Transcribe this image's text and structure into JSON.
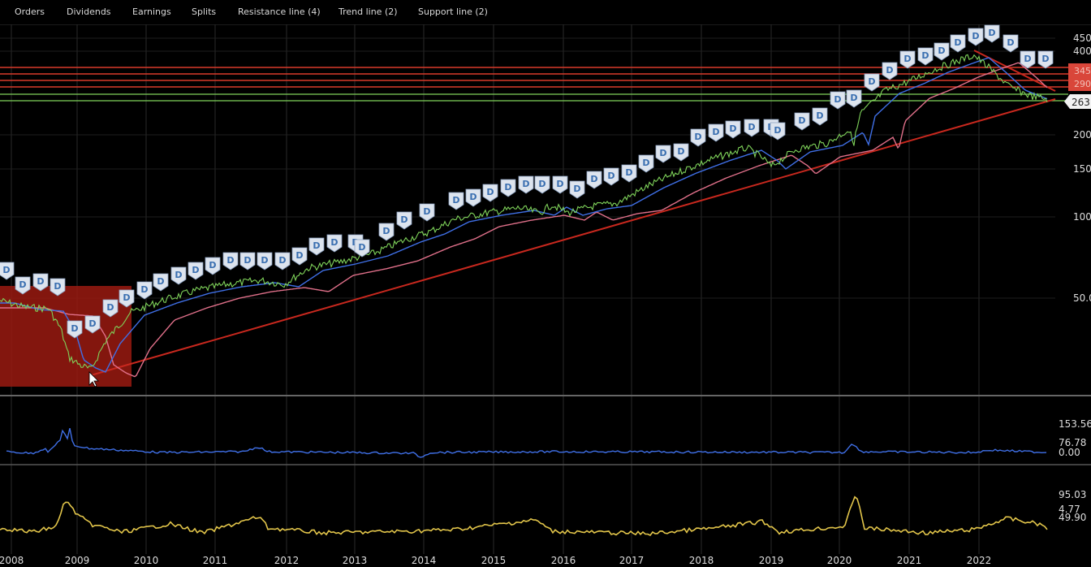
{
  "toolbar": {
    "items": [
      "Orders",
      "Dividends",
      "Earnings",
      "Splits",
      "Resistance line (4)",
      "Trend line (2)",
      "Support line (2)"
    ]
  },
  "main_chart": {
    "y_ticks": [
      "450",
      "400",
      "200",
      "150",
      "100",
      "50.0"
    ],
    "resistance_labels": [
      "345",
      "290"
    ],
    "last_price_label": "263",
    "dividend_marker": "D"
  },
  "x_axis": {
    "years": [
      "2008",
      "2009",
      "2010",
      "2011",
      "2012",
      "2013",
      "2014",
      "2015",
      "2016",
      "2017",
      "2018",
      "2019",
      "2020",
      "2021",
      "2022"
    ]
  },
  "panel_1": {
    "ticks": [
      "153.56",
      "76.78",
      "0.00"
    ],
    "color": "#3f6fe6"
  },
  "panel_2": {
    "ticks": [
      "95.03",
      "49.90",
      "4.77"
    ],
    "color": "#e2c54a"
  },
  "colors": {
    "resistance": "#d93a2a",
    "support": "#7fd35a",
    "trend": "#c8281e",
    "highlight": "#9a1a10",
    "price": "#7fd35a",
    "ma_fast": "#3f6fe6",
    "ma_slow": "#e0708a"
  }
}
